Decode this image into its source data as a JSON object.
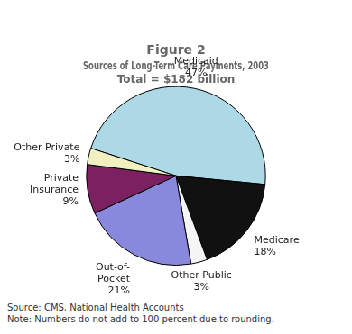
{
  "chart_data": {
    "type": "pie",
    "title": "Figure 2",
    "subtitle": [
      "Sources of Long-Term Care Payments, 2003",
      "Total = $182 billion"
    ],
    "categories": [
      "Medicaid",
      "Medicare",
      "Other Public",
      "Out-of-\nPocket",
      "Private\nInsurance",
      "Other Private"
    ],
    "values": [
      47,
      18,
      3,
      21,
      9,
      3
    ],
    "value_labels": [
      "47%",
      "18%",
      "3%",
      "21%",
      "9%",
      "3%"
    ],
    "colors": [
      "#add8e6",
      "#111111",
      "#f5f5f5",
      "#8888dd",
      "#7b2060",
      "#f0f0c0"
    ],
    "data_labels": true,
    "annotations": [
      "Source: CMS, National Health Accounts",
      "Note: Numbers do not add to 100 percent due to rounding."
    ]
  }
}
